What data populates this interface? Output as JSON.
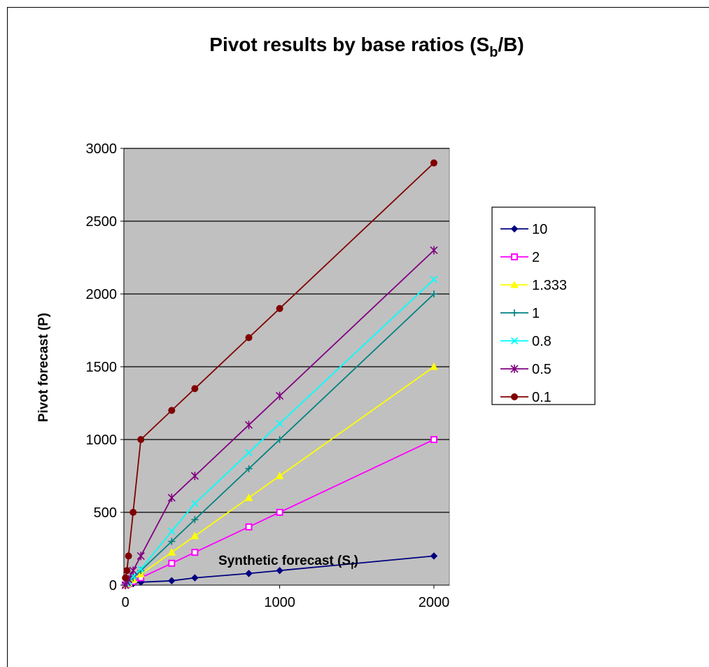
{
  "chart_data": {
    "type": "line",
    "title": "Pivot results by base ratios (S",
    "title_sub": "b",
    "title_suffix": "/B)",
    "xlabel": "Synthetic forecast (S",
    "xlabel_sub": "f",
    "xlabel_suffix": ")",
    "ylabel": "Pivot forecast (P)",
    "xlim": [
      -10,
      2100
    ],
    "ylim": [
      0,
      3000
    ],
    "xticks": [
      0,
      1000,
      2000
    ],
    "yticks": [
      0,
      500,
      1000,
      1500,
      2000,
      2500,
      3000
    ],
    "grid": "horizontal",
    "legend_position": "right",
    "plot_background": "#c0c0c0",
    "series": [
      {
        "name": "10",
        "color": "#000080",
        "marker": "diamond",
        "x": [
          0,
          10,
          20,
          50,
          100,
          300,
          450,
          800,
          1000,
          2000
        ],
        "y": [
          0,
          2,
          4,
          10,
          20,
          30,
          50,
          80,
          100,
          200
        ]
      },
      {
        "name": "2",
        "color": "#ff00ff",
        "marker": "square",
        "x": [
          0,
          10,
          20,
          50,
          100,
          300,
          450,
          800,
          1000,
          2000
        ],
        "y": [
          0,
          5,
          10,
          25,
          50,
          150,
          225,
          400,
          500,
          1000
        ]
      },
      {
        "name": "1.333",
        "color": "#ffff00",
        "marker": "triangle",
        "x": [
          0,
          10,
          20,
          50,
          100,
          300,
          450,
          800,
          1000,
          2000
        ],
        "y": [
          0,
          7,
          15,
          37,
          75,
          225,
          337,
          600,
          750,
          1500
        ]
      },
      {
        "name": "1",
        "color": "#008080",
        "marker": "plus",
        "x": [
          0,
          10,
          20,
          50,
          100,
          300,
          450,
          800,
          1000,
          2000
        ],
        "y": [
          0,
          10,
          20,
          50,
          100,
          300,
          450,
          800,
          1000,
          2000
        ]
      },
      {
        "name": "0.8",
        "color": "#00ffff",
        "marker": "x",
        "x": [
          0,
          10,
          20,
          50,
          100,
          300,
          450,
          800,
          1000,
          2000
        ],
        "y": [
          0,
          12,
          25,
          60,
          110,
          370,
          560,
          910,
          1110,
          2100
        ]
      },
      {
        "name": "0.5",
        "color": "#800080",
        "marker": "star",
        "x": [
          0,
          10,
          20,
          50,
          100,
          300,
          450,
          800,
          1000,
          2000
        ],
        "y": [
          0,
          20,
          40,
          100,
          200,
          600,
          750,
          1100,
          1300,
          2300
        ]
      },
      {
        "name": "0.1",
        "color": "#800000",
        "marker": "circle",
        "x": [
          0,
          10,
          20,
          50,
          100,
          300,
          450,
          800,
          1000,
          2000
        ],
        "y": [
          50,
          100,
          200,
          500,
          1000,
          1200,
          1350,
          1700,
          1900,
          2900
        ]
      }
    ]
  }
}
